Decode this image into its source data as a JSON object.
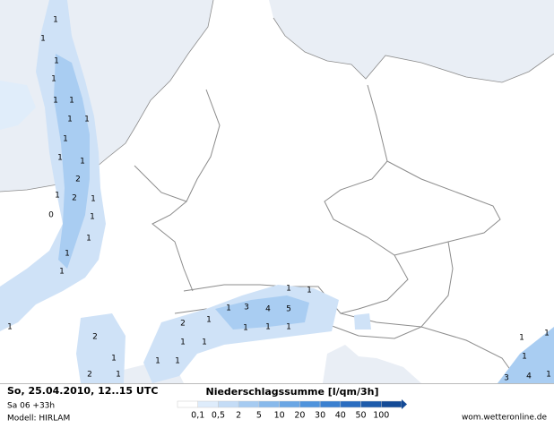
{
  "map": {
    "labels": [
      "1",
      "1",
      "1",
      "1",
      "1",
      "1",
      "1",
      "1",
      "1",
      "1",
      "1",
      "2",
      "1",
      "2",
      "1",
      "0",
      "1",
      "1",
      "1",
      "1",
      "1",
      "2",
      "1",
      "2",
      "1",
      "2",
      "1",
      "1",
      "3",
      "4",
      "5",
      "1",
      "1",
      "1",
      "1",
      "1",
      "1",
      "1",
      "1",
      "1",
      "1",
      "1",
      "1",
      "3",
      "4",
      "1"
    ]
  },
  "footer": {
    "date": "So, 25.04.2010, 12..15 UTC",
    "run": "Sa 06 +33h",
    "model": "Modell: HIRLAM",
    "legend_title": "Niederschlagssumme [l/qm/3h]",
    "legend_labels": [
      "0,1",
      "0,5",
      "2",
      "5",
      "10",
      "20",
      "30",
      "40",
      "50",
      "100"
    ],
    "legend_colors": [
      "#ffffff",
      "#deecfb",
      "#c4dcf6",
      "#a6cbf1",
      "#88b9eb",
      "#6aa6e4",
      "#4f93dc",
      "#3a80d0",
      "#2a6dc0",
      "#1d5bab",
      "#134a96"
    ],
    "source": "wom.wetteronline.de"
  }
}
